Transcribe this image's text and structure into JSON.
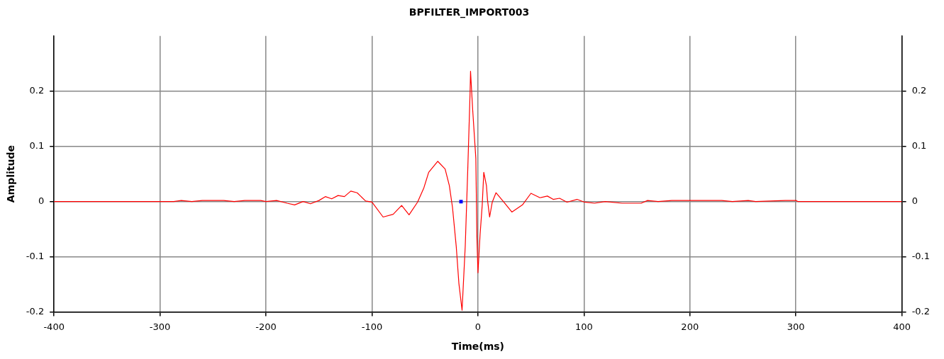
{
  "chart_data": {
    "type": "line",
    "title": "BPFILTER_IMPORT003",
    "xlabel": "Time(ms)",
    "ylabel": "Amplitude",
    "xlim": [
      -400,
      400
    ],
    "xticks": [
      -400,
      -300,
      -200,
      -100,
      0,
      100,
      200,
      300,
      400
    ],
    "ylim": [
      -0.2,
      0.3
    ],
    "yticks": [
      -0.2,
      -0.1,
      0,
      0.1,
      0.2
    ],
    "y2lim": [
      -0.2,
      0.3
    ],
    "y2ticks": [
      -0.2,
      -0.1,
      0,
      0.1,
      0.2
    ],
    "grid": true,
    "legend": false,
    "series": [
      {
        "color": "#ff0000",
        "marker": "none",
        "x": [
          -400,
          -287,
          -280,
          -270,
          -260,
          -240,
          -230,
          -220,
          -205,
          -200,
          -190,
          -180,
          -173,
          -165,
          -158,
          -150,
          -144,
          -138,
          -132,
          -126,
          -120,
          -114,
          -106,
          -100,
          -89.5,
          -80,
          -72,
          -65,
          -57,
          -51,
          -46.5,
          -38,
          -31,
          -27,
          -24,
          -20.5,
          -18,
          -15,
          -12,
          -9.5,
          -7.5,
          -7,
          -5,
          -2,
          -1,
          0,
          2,
          4,
          5.5,
          8,
          9,
          11,
          13.5,
          17,
          24,
          32,
          42,
          50,
          58.5,
          65.5,
          71,
          77,
          84,
          93.5,
          100.5,
          110,
          120,
          136,
          154,
          160,
          170,
          183,
          230,
          240,
          255,
          262,
          290,
          300,
          302,
          400
        ],
        "values": [
          0,
          0,
          0.002,
          0,
          0.002,
          0.002,
          0,
          0.002,
          0.002,
          0,
          0.002,
          -0.003,
          -0.006,
          0,
          -0.004,
          0.002,
          0.009,
          0.005,
          0.011,
          0.009,
          0.019,
          0.016,
          0.001,
          -0.001,
          -0.028,
          -0.023,
          -0.007,
          -0.024,
          -0.001,
          0.025,
          0.053,
          0.073,
          0.059,
          0.029,
          -0.011,
          -0.081,
          -0.148,
          -0.197,
          -0.081,
          0.065,
          0.193,
          0.236,
          0.167,
          0.078,
          -0.064,
          -0.129,
          -0.06,
          -0.007,
          0.053,
          0.029,
          0.003,
          -0.028,
          -0.001,
          0.016,
          0,
          -0.019,
          -0.006,
          0.015,
          0.007,
          0.01,
          0.004,
          0.006,
          -0.001,
          0.004,
          -0.001,
          -0.003,
          0,
          -0.003,
          -0.003,
          0.002,
          0,
          0.002,
          0.002,
          0,
          0.002,
          0,
          0.002,
          0.002,
          0,
          0
        ]
      },
      {
        "type": "scatter",
        "color": "#0000ff",
        "marker": "square",
        "x": [
          -16
        ],
        "values": [
          0
        ]
      }
    ]
  }
}
